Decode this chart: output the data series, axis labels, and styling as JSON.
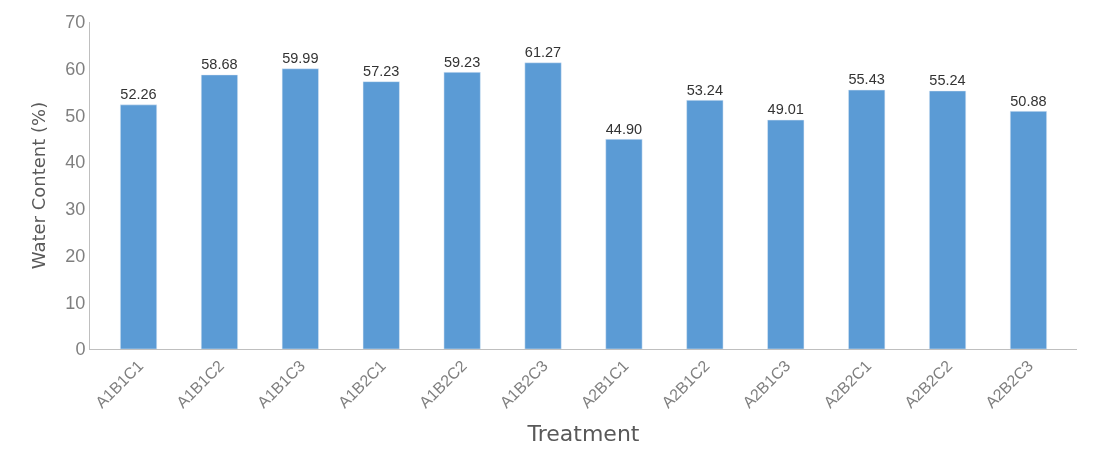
{
  "chart_data": {
    "type": "bar",
    "xlabel": "Treatment",
    "ylabel": "Water Content (%)",
    "categories": [
      "A1B1C1",
      "A1B1C2",
      "A1B1C3",
      "A1B2C1",
      "A1B2C2",
      "A1B2C3",
      "A2B1C1",
      "A2B1C2",
      "A2B1C3",
      "A2B2C1",
      "A2B2C2",
      "A2B2C3"
    ],
    "values": [
      52.26,
      58.68,
      59.99,
      57.23,
      59.23,
      61.27,
      44.9,
      53.24,
      49.01,
      55.43,
      55.24,
      50.88
    ],
    "value_labels": [
      "52.26",
      "58.68",
      "59.99",
      "57.23",
      "59.23",
      "61.27",
      "44.90",
      "53.24",
      "49.01",
      "55.43",
      "55.24",
      "50.88"
    ],
    "color": "#5b9bd5",
    "ylim": [
      0,
      70
    ],
    "yticks": [
      0,
      10,
      20,
      30,
      40,
      50,
      60,
      70
    ]
  }
}
